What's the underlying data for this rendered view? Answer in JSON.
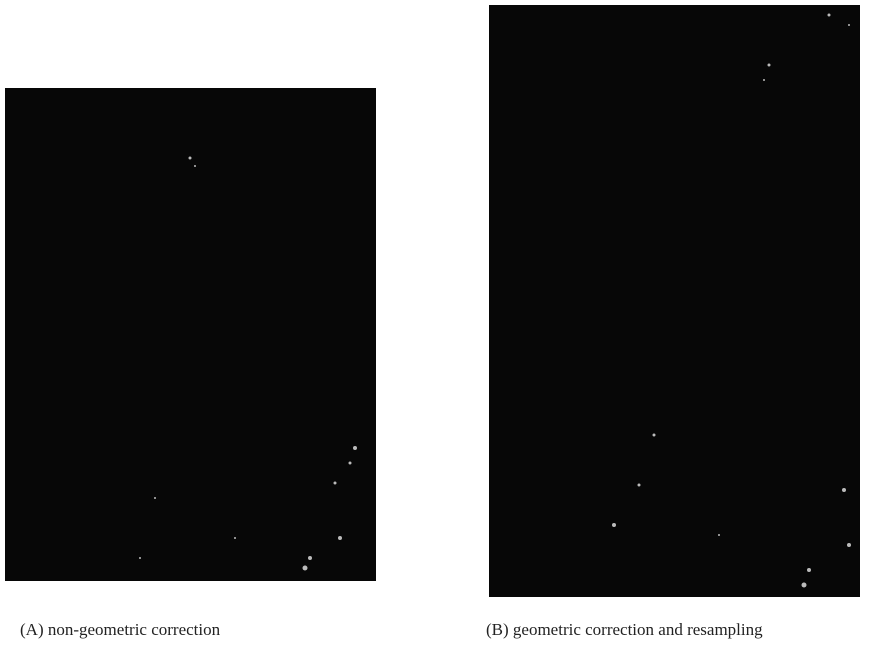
{
  "panels": [
    {
      "caption": "(A) non-geometric correction"
    },
    {
      "caption": "(B) geometric correction and resampling"
    }
  ]
}
